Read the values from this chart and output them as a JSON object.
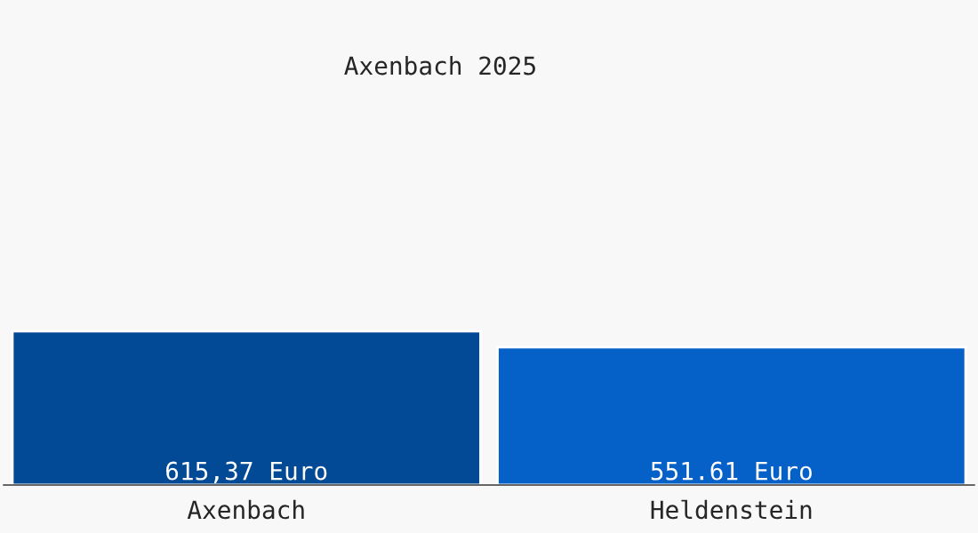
{
  "chart_data": {
    "type": "bar",
    "title": "Axenbach 2025",
    "categories": [
      "Axenbach",
      "Heldenstein"
    ],
    "values": [
      615.37,
      551.61
    ],
    "colors": [
      "#034a96",
      "#0560c8"
    ],
    "value_labels": [
      "615,37 Euro",
      "551.61 Euro"
    ],
    "ylim": [
      0,
      1930
    ],
    "tick_labels": "x",
    "grid": false,
    "legend": false
  }
}
